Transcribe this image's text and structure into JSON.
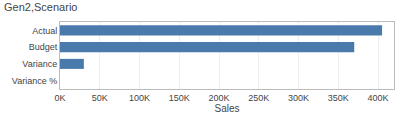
{
  "chart_data": {
    "type": "bar",
    "orientation": "horizontal",
    "title": "Gen2,Scenario",
    "categories": [
      "Actual",
      "Budget",
      "Variance",
      "Variance %"
    ],
    "values": [
      405000,
      370000,
      30000,
      0
    ],
    "color": "#4a7aac",
    "xlabel": "Sales",
    "xlim": [
      0,
      420000
    ],
    "xticks": [
      {
        "value": 0,
        "label": "0K"
      },
      {
        "value": 50000,
        "label": "50K"
      },
      {
        "value": 100000,
        "label": "100K"
      },
      {
        "value": 150000,
        "label": "150K"
      },
      {
        "value": 200000,
        "label": "200K"
      },
      {
        "value": 250000,
        "label": "250K"
      },
      {
        "value": 300000,
        "label": "300K"
      },
      {
        "value": 350000,
        "label": "350K"
      },
      {
        "value": 400000,
        "label": "400K"
      }
    ],
    "grid": true
  }
}
